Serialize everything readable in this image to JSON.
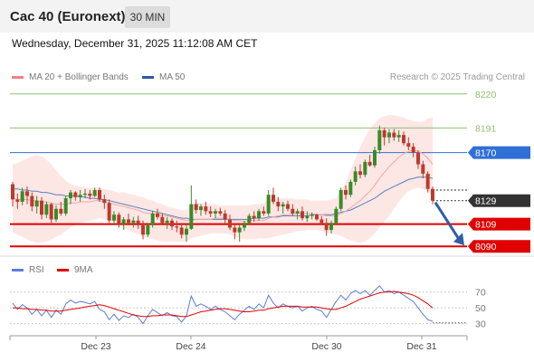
{
  "header": {
    "title": "Cac 40 (Euronext)",
    "timeframe": "30 MIN",
    "datetime": "Wednesday, December 31, 2025 11:12:08 AM CET"
  },
  "legend": {
    "items": [
      {
        "label": "MA 20 + Bollinger Bands",
        "color": "#f08080"
      },
      {
        "label": "MA 50",
        "color": "#2c5aa0"
      }
    ],
    "credit": "Research © 2025 Trading Central"
  },
  "rsi_legend": {
    "items": [
      {
        "label": "RSI",
        "color": "#5b7fd4"
      },
      {
        "label": "9MA",
        "color": "#e00000"
      }
    ]
  },
  "chart_data": [
    {
      "type": "candlestick",
      "ylim": [
        8084,
        8226
      ],
      "x_ticks": [
        "Dec 23",
        "Dec 24",
        "Dec 30",
        "Dec 31"
      ],
      "y_levels": [
        {
          "value": 8220,
          "label": "8220",
          "style": "resistance",
          "color": "#8dc26f"
        },
        {
          "value": 8191,
          "label": "8191",
          "style": "resistance",
          "color": "#8dc26f"
        },
        {
          "value": 8170,
          "label": "8170",
          "style": "pivot",
          "color": "#2f6fd6"
        },
        {
          "value": 8129,
          "label": "8129",
          "style": "last-price",
          "color": "#333333"
        },
        {
          "value": 8109,
          "label": "8109",
          "style": "support",
          "color": "#e00000"
        },
        {
          "value": 8090,
          "label": "8090",
          "style": "support",
          "color": "#e00000"
        }
      ],
      "colors": {
        "up": "#3a8a2a",
        "down": "#c0392b",
        "bb_fill": "#fde3e1",
        "ma20": "#f4a6a2",
        "ma50": "#5a7fc0",
        "arrow": "#2f5ea8"
      },
      "candles": [
        [
          8143,
          8145,
          8124,
          8130
        ],
        [
          8130,
          8135,
          8122,
          8128
        ],
        [
          8128,
          8140,
          8125,
          8137
        ],
        [
          8137,
          8141,
          8126,
          8133
        ],
        [
          8133,
          8136,
          8120,
          8124
        ],
        [
          8124,
          8133,
          8118,
          8129
        ],
        [
          8129,
          8132,
          8113,
          8117
        ],
        [
          8117,
          8128,
          8114,
          8126
        ],
        [
          8126,
          8127,
          8110,
          8113
        ],
        [
          8113,
          8125,
          8111,
          8122
        ],
        [
          8122,
          8128,
          8116,
          8118
        ],
        [
          8118,
          8133,
          8116,
          8131
        ],
        [
          8131,
          8138,
          8126,
          8136
        ],
        [
          8136,
          8137,
          8129,
          8132
        ],
        [
          8132,
          8138,
          8128,
          8134
        ],
        [
          8134,
          8139,
          8131,
          8135
        ],
        [
          8135,
          8138,
          8130,
          8133
        ],
        [
          8133,
          8140,
          8132,
          8138
        ],
        [
          8138,
          8140,
          8128,
          8130
        ],
        [
          8130,
          8134,
          8122,
          8127
        ],
        [
          8127,
          8130,
          8110,
          8112
        ],
        [
          8112,
          8120,
          8108,
          8117
        ],
        [
          8117,
          8119,
          8106,
          8109
        ],
        [
          8109,
          8115,
          8104,
          8113
        ],
        [
          8113,
          8118,
          8108,
          8110
        ],
        [
          8110,
          8115,
          8106,
          8112
        ],
        [
          8112,
          8116,
          8105,
          8108
        ],
        [
          8108,
          8112,
          8096,
          8100
        ],
        [
          8100,
          8110,
          8098,
          8108
        ],
        [
          8108,
          8120,
          8106,
          8118
        ],
        [
          8118,
          8122,
          8113,
          8115
        ],
        [
          8115,
          8118,
          8108,
          8110
        ],
        [
          8110,
          8115,
          8105,
          8112
        ],
        [
          8112,
          8114,
          8104,
          8107
        ],
        [
          8107,
          8112,
          8102,
          8106
        ],
        [
          8106,
          8110,
          8097,
          8100
        ],
        [
          8100,
          8108,
          8094,
          8105
        ],
        [
          8105,
          8142,
          8104,
          8126
        ],
        [
          8126,
          8130,
          8118,
          8121
        ],
        [
          8121,
          8126,
          8116,
          8124
        ],
        [
          8124,
          8128,
          8117,
          8120
        ],
        [
          8120,
          8124,
          8115,
          8118
        ],
        [
          8118,
          8122,
          8114,
          8120
        ],
        [
          8120,
          8123,
          8116,
          8118
        ],
        [
          8118,
          8121,
          8110,
          8113
        ],
        [
          8113,
          8117,
          8104,
          8106
        ],
        [
          8106,
          8110,
          8096,
          8102
        ],
        [
          8102,
          8108,
          8094,
          8106
        ],
        [
          8106,
          8112,
          8103,
          8110
        ],
        [
          8110,
          8118,
          8108,
          8116
        ],
        [
          8116,
          8120,
          8111,
          8114
        ],
        [
          8114,
          8122,
          8112,
          8120
        ],
        [
          8120,
          8124,
          8116,
          8118
        ],
        [
          8118,
          8138,
          8116,
          8134
        ],
        [
          8134,
          8140,
          8126,
          8128
        ],
        [
          8128,
          8132,
          8120,
          8124
        ],
        [
          8124,
          8128,
          8118,
          8126
        ],
        [
          8126,
          8129,
          8120,
          8122
        ],
        [
          8122,
          8126,
          8116,
          8118
        ],
        [
          8118,
          8122,
          8113,
          8120
        ],
        [
          8120,
          8124,
          8112,
          8114
        ],
        [
          8114,
          8120,
          8111,
          8116
        ],
        [
          8116,
          8119,
          8113,
          8117
        ],
        [
          8117,
          8118,
          8112,
          8113
        ],
        [
          8113,
          8116,
          8108,
          8110
        ],
        [
          8110,
          8114,
          8099,
          8104
        ],
        [
          8104,
          8112,
          8101,
          8110
        ],
        [
          8110,
          8124,
          8108,
          8122
        ],
        [
          8122,
          8140,
          8120,
          8138
        ],
        [
          8138,
          8142,
          8130,
          8134
        ],
        [
          8134,
          8147,
          8132,
          8145
        ],
        [
          8145,
          8158,
          8142,
          8154
        ],
        [
          8154,
          8160,
          8148,
          8151
        ],
        [
          8151,
          8164,
          8149,
          8162
        ],
        [
          8162,
          8168,
          8158,
          8159
        ],
        [
          8159,
          8175,
          8157,
          8172
        ],
        [
          8172,
          8193,
          8169,
          8189
        ],
        [
          8189,
          8191,
          8176,
          8183
        ],
        [
          8183,
          8190,
          8178,
          8187
        ],
        [
          8187,
          8190,
          8180,
          8183
        ],
        [
          8183,
          8189,
          8179,
          8185
        ],
        [
          8185,
          8188,
          8176,
          8178
        ],
        [
          8178,
          8183,
          8172,
          8175
        ],
        [
          8175,
          8178,
          8166,
          8170
        ],
        [
          8170,
          8172,
          8156,
          8160
        ],
        [
          8160,
          8163,
          8148,
          8152
        ],
        [
          8152,
          8154,
          8136,
          8139
        ],
        [
          8139,
          8141,
          8126,
          8129
        ]
      ],
      "ma20": [
        8131,
        8130,
        8130,
        8130,
        8129,
        8129,
        8128,
        8128,
        8127,
        8126,
        8126,
        8126,
        8127,
        8127,
        8128,
        8128,
        8128,
        8129,
        8129,
        8128,
        8127,
        8126,
        8125,
        8124,
        8123,
        8122,
        8121,
        8119,
        8118,
        8118,
        8117,
        8116,
        8116,
        8115,
        8114,
        8113,
        8112,
        8112,
        8113,
        8113,
        8113,
        8113,
        8114,
        8114,
        8114,
        8113,
        8112,
        8112,
        8111,
        8112,
        8112,
        8112,
        8112,
        8114,
        8115,
        8116,
        8117,
        8117,
        8118,
        8118,
        8118,
        8118,
        8118,
        8117,
        8117,
        8116,
        8116,
        8116,
        8118,
        8120,
        8123,
        8126,
        8129,
        8133,
        8137,
        8142,
        8148,
        8153,
        8158,
        8162,
        8166,
        8169,
        8171,
        8172,
        8171,
        8169,
        8165,
        8160
      ],
      "ma50": [
        8139,
        8139,
        8138,
        8138,
        8137,
        8137,
        8136,
        8136,
        8135,
        8134,
        8134,
        8133,
        8133,
        8133,
        8132,
        8132,
        8131,
        8131,
        8130,
        8130,
        8129,
        8128,
        8127,
        8126,
        8125,
        8124,
        8123,
        8122,
        8121,
        8120,
        8119,
        8118,
        8117,
        8116,
        8115,
        8114,
        8114,
        8113,
        8113,
        8113,
        8113,
        8113,
        8113,
        8113,
        8113,
        8113,
        8113,
        8113,
        8113,
        8113,
        8114,
        8114,
        8114,
        8115,
        8115,
        8115,
        8116,
        8116,
        8116,
        8116,
        8116,
        8116,
        8117,
        8117,
        8117,
        8117,
        8117,
        8118,
        8119,
        8120,
        8121,
        8123,
        8125,
        8127,
        8129,
        8131,
        8134,
        8137,
        8139,
        8141,
        8143,
        8145,
        8147,
        8148,
        8149,
        8149,
        8149,
        8148
      ],
      "bb_upper": [
        8160,
        8161,
        8163,
        8165,
        8167,
        8168,
        8167,
        8164,
        8160,
        8155,
        8150,
        8146,
        8143,
        8142,
        8141,
        8140,
        8140,
        8140,
        8140,
        8139,
        8138,
        8137,
        8136,
        8136,
        8135,
        8134,
        8133,
        8132,
        8130,
        8129,
        8127,
        8126,
        8124,
        8123,
        8122,
        8121,
        8121,
        8126,
        8127,
        8127,
        8127,
        8126,
        8126,
        8125,
        8125,
        8125,
        8125,
        8125,
        8125,
        8125,
        8126,
        8126,
        8127,
        8130,
        8131,
        8131,
        8131,
        8131,
        8131,
        8130,
        8130,
        8130,
        8129,
        8129,
        8129,
        8129,
        8130,
        8131,
        8137,
        8145,
        8155,
        8165,
        8175,
        8183,
        8190,
        8195,
        8199,
        8201,
        8202,
        8202,
        8201,
        8200,
        8198,
        8197,
        8196,
        8196,
        8199,
        8200
      ],
      "bb_lower": [
        8102,
        8100,
        8098,
        8096,
        8094,
        8093,
        8093,
        8094,
        8096,
        8098,
        8100,
        8103,
        8106,
        8108,
        8110,
        8111,
        8112,
        8113,
        8114,
        8113,
        8112,
        8111,
        8109,
        8106,
        8104,
        8102,
        8100,
        8098,
        8097,
        8096,
        8095,
        8094,
        8094,
        8094,
        8094,
        8094,
        8094,
        8097,
        8098,
        8099,
        8100,
        8101,
        8101,
        8101,
        8101,
        8100,
        8098,
        8097,
        8096,
        8096,
        8096,
        8097,
        8097,
        8097,
        8098,
        8099,
        8100,
        8101,
        8102,
        8103,
        8103,
        8104,
        8104,
        8104,
        8103,
        8102,
        8101,
        8100,
        8099,
        8097,
        8095,
        8094,
        8093,
        8094,
        8097,
        8101,
        8106,
        8111,
        8116,
        8122,
        8128,
        8133,
        8137,
        8139,
        8140,
        8139,
        8137,
        8133
      ],
      "forecast_arrow": {
        "from": 8129,
        "to": 8090
      }
    },
    {
      "type": "line",
      "title": "RSI",
      "ylim": [
        25,
        80
      ],
      "y_ticks": [
        70,
        50,
        30
      ],
      "series": [
        {
          "name": "RSI",
          "color": "#5b7fd4",
          "values": [
            56,
            48,
            54,
            50,
            42,
            48,
            40,
            47,
            38,
            47,
            42,
            55,
            60,
            56,
            58,
            57,
            55,
            58,
            48,
            45,
            35,
            42,
            34,
            40,
            38,
            42,
            38,
            30,
            40,
            48,
            44,
            40,
            44,
            40,
            39,
            32,
            40,
            65,
            52,
            55,
            52,
            48,
            52,
            48,
            45,
            40,
            35,
            42,
            47,
            52,
            48,
            55,
            50,
            66,
            56,
            50,
            55,
            52,
            50,
            52,
            46,
            50,
            52,
            48,
            46,
            38,
            48,
            58,
            66,
            60,
            68,
            72,
            68,
            72,
            66,
            72,
            78,
            70,
            72,
            68,
            70,
            66,
            62,
            58,
            50,
            42,
            35,
            33
          ]
        },
        {
          "name": "9MA",
          "color": "#e00000",
          "values": [
            50,
            50,
            49,
            49,
            48,
            48,
            47,
            47,
            46,
            46,
            46,
            47,
            48,
            49,
            50,
            51,
            52,
            53,
            54,
            53,
            51,
            49,
            47,
            45,
            43,
            41,
            40,
            39,
            39,
            40,
            40,
            41,
            41,
            41,
            40,
            39,
            39,
            41,
            43,
            45,
            46,
            47,
            48,
            49,
            49,
            48,
            47,
            46,
            45,
            45,
            46,
            47,
            47,
            49,
            50,
            51,
            52,
            52,
            52,
            52,
            51,
            51,
            51,
            51,
            50,
            49,
            48,
            48,
            50,
            52,
            55,
            58,
            61,
            63,
            65,
            67,
            69,
            70,
            70,
            71,
            70,
            69,
            68,
            66,
            63,
            59,
            55,
            50
          ]
        }
      ]
    }
  ]
}
